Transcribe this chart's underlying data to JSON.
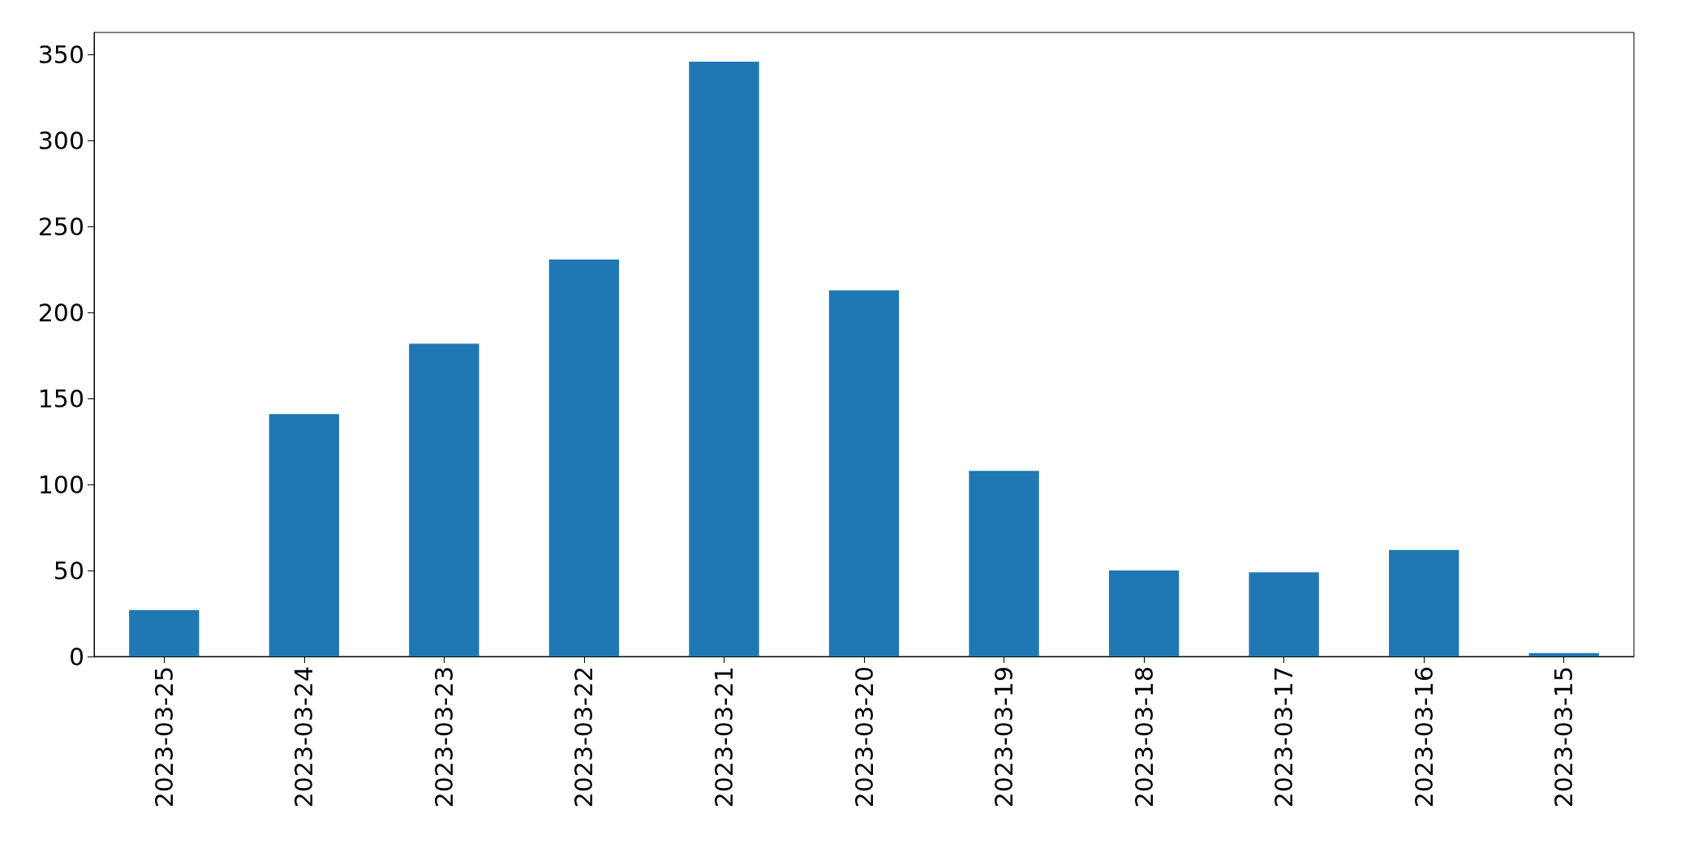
{
  "chart_data": {
    "type": "bar",
    "categories": [
      "2023-03-25",
      "2023-03-24",
      "2023-03-23",
      "2023-03-22",
      "2023-03-21",
      "2023-03-20",
      "2023-03-19",
      "2023-03-18",
      "2023-03-17",
      "2023-03-16",
      "2023-03-15"
    ],
    "values": [
      27,
      141,
      182,
      231,
      346,
      213,
      108,
      50,
      49,
      62,
      2
    ],
    "color": "#1f77b4",
    "ylim": [
      0,
      363
    ],
    "yticks": [
      0,
      50,
      100,
      150,
      200,
      250,
      300,
      350
    ]
  }
}
